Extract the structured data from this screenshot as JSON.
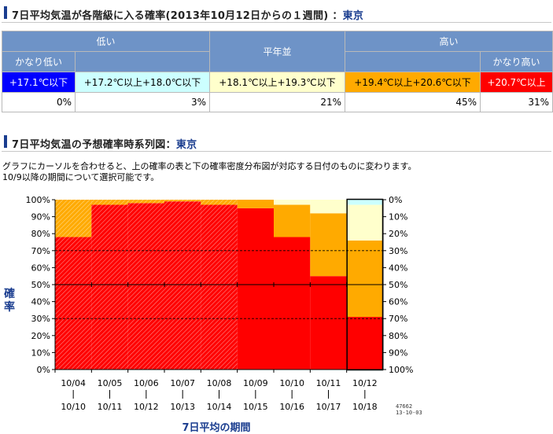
{
  "section1": {
    "title_prefix": "7日平均気温が各階級に入る確率(2013年10月12日からの１週間) ：",
    "city": "東京"
  },
  "table": {
    "group_low": "低い",
    "group_normal": "平年並",
    "group_high": "高い",
    "much_low": "かなり低い",
    "much_high": "かなり高い",
    "ranges": [
      "+17.1℃以下",
      "+17.2℃以上+18.0℃以下",
      "+18.1℃以上+19.3℃以下",
      "+19.4℃以上+20.6℃以下",
      "+20.7℃以上"
    ],
    "percents": [
      "0%",
      "3%",
      "21%",
      "45%",
      "31%"
    ]
  },
  "colors": {
    "much_low": "#0000ff",
    "low": "#ccffff",
    "normal": "#ffffcc",
    "high": "#ffaa00",
    "much_high": "#ff0000",
    "header": "#6e93c7",
    "title_accent": "#1a3d8f"
  },
  "section2": {
    "title_prefix": "7日平均気温の予想確率時系列図：",
    "city": "東京"
  },
  "description": [
    "グラフにカーソルを合わせると、上の確率の表と下の確率密度分布図が対応する日付のものに変わります。",
    "10/9以降の期間について選択可能です。"
  ],
  "y_label": "確率",
  "x_label": "7日平均の期間",
  "stamp": [
    "47662",
    "13-10-03"
  ],
  "chart_data": {
    "type": "bar",
    "stacked": true,
    "categories": [
      "10/04 | 10/10",
      "10/05 | 10/11",
      "10/06 | 10/12",
      "10/07 | 10/13",
      "10/08 | 10/14",
      "10/09 | 10/15",
      "10/10 | 10/16",
      "10/11 | 10/17",
      "10/12 | 10/18"
    ],
    "period_start": [
      "10/04",
      "10/05",
      "10/06",
      "10/07",
      "10/08",
      "10/09",
      "10/10",
      "10/11",
      "10/12"
    ],
    "period_end": [
      "10/10",
      "10/11",
      "10/12",
      "10/13",
      "10/14",
      "10/15",
      "10/16",
      "10/17",
      "10/18"
    ],
    "hatched_observed": [
      true,
      true,
      true,
      true,
      true,
      false,
      false,
      false,
      false
    ],
    "highlighted_index": 8,
    "series": [
      {
        "name": "かなり高い",
        "color": "#ff0000",
        "values": [
          78,
          97,
          98,
          99,
          97,
          95,
          78,
          55,
          31
        ]
      },
      {
        "name": "高い",
        "color": "#ffaa00",
        "values": [
          22,
          3,
          2,
          1,
          3,
          5,
          19,
          37,
          45
        ]
      },
      {
        "name": "平年並",
        "color": "#ffffcc",
        "values": [
          0,
          0,
          0,
          0,
          0,
          0,
          3,
          8,
          21
        ]
      },
      {
        "name": "低い",
        "color": "#ccffff",
        "values": [
          0,
          0,
          0,
          0,
          0,
          0,
          0,
          0,
          3
        ]
      },
      {
        "name": "かなり低い",
        "color": "#0000ff",
        "values": [
          0,
          0,
          0,
          0,
          0,
          0,
          0,
          0,
          0
        ]
      }
    ],
    "yticks_left": [
      "0%",
      "10%",
      "20%",
      "30%",
      "40%",
      "50%",
      "60%",
      "70%",
      "80%",
      "90%",
      "100%"
    ],
    "yticks_right": [
      "100%",
      "90%",
      "80%",
      "70%",
      "60%",
      "50%",
      "40%",
      "30%",
      "20%",
      "10%",
      "0%"
    ],
    "ylim": [
      0,
      100
    ],
    "ref_lines": [
      {
        "value": 30,
        "style": "dashed"
      },
      {
        "value": 50,
        "style": "solid"
      },
      {
        "value": 70,
        "style": "dashed"
      }
    ]
  }
}
